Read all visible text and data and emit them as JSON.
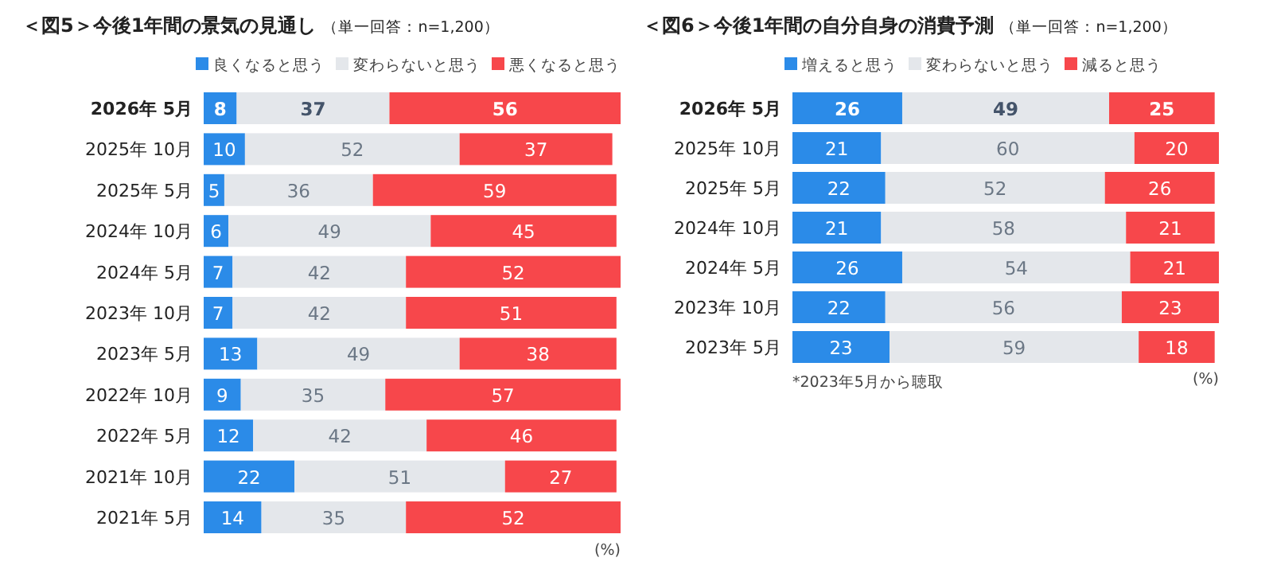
{
  "chart_data": [
    {
      "type": "bar",
      "orientation": "horizontal",
      "stacked": true,
      "data_labels": true,
      "legend": "top",
      "title": "＜図5＞今後1年間の景気の見通し",
      "subtitle": "（単一回答：n=1,200）",
      "annotations": [
        "(%)"
      ],
      "categories": [
        "2026年 5月",
        "2025年 10月",
        "2025年 5月",
        "2024年 10月",
        "2024年 5月",
        "2023年 10月",
        "2023年 5月",
        "2022年 10月",
        "2022年 5月",
        "2021年 10月",
        "2021年 5月"
      ],
      "series": [
        {
          "name": "良くなると思う",
          "color": "#2b8be8",
          "values": [
            8,
            10,
            5,
            6,
            7,
            7,
            13,
            9,
            12,
            22,
            14
          ]
        },
        {
          "name": "変わらないと思う",
          "color": "#e4e7eb",
          "values": [
            37,
            52,
            36,
            49,
            42,
            42,
            49,
            35,
            42,
            51,
            35
          ]
        },
        {
          "name": "悪くなると思う",
          "color": "#f7474b",
          "values": [
            56,
            37,
            59,
            45,
            52,
            51,
            38,
            57,
            46,
            27,
            52
          ]
        }
      ]
    },
    {
      "type": "bar",
      "orientation": "horizontal",
      "stacked": true,
      "data_labels": true,
      "legend": "top",
      "title": "＜図6＞今後1年間の自分自身の消費予測",
      "subtitle": "（単一回答：n=1,200）",
      "annotations": [
        "*2023年5月から聴取",
        "(%)"
      ],
      "categories": [
        "2026年 5月",
        "2025年 10月",
        "2025年 5月",
        "2024年 10月",
        "2024年 5月",
        "2023年 10月",
        "2023年 5月"
      ],
      "series": [
        {
          "name": "増えると思う",
          "color": "#2b8be8",
          "values": [
            26,
            21,
            22,
            21,
            26,
            22,
            23
          ]
        },
        {
          "name": "変わらないと思う",
          "color": "#e4e7eb",
          "values": [
            49,
            60,
            52,
            58,
            54,
            56,
            59
          ]
        },
        {
          "name": "減ると思う",
          "color": "#f7474b",
          "values": [
            25,
            20,
            26,
            21,
            21,
            23,
            18
          ]
        }
      ]
    }
  ]
}
